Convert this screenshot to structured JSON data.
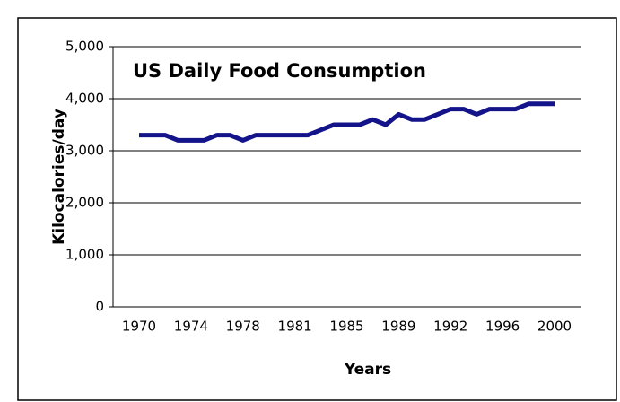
{
  "chart_data": {
    "type": "line",
    "title": "US Daily Food Consumption",
    "x_label": "Years",
    "y_label": "Kilocalories/day",
    "categories": [
      "1970",
      null,
      null,
      null,
      "1974",
      null,
      null,
      null,
      "1978",
      null,
      null,
      null,
      "1981",
      null,
      null,
      null,
      "1985",
      null,
      null,
      null,
      "1989",
      null,
      null,
      null,
      "1992",
      null,
      null,
      null,
      "1996",
      null,
      null,
      null,
      "2000"
    ],
    "series": [
      {
        "name": "Kilocalories/day",
        "color": "#13138a",
        "values": [
          3300,
          3300,
          3300,
          3200,
          3200,
          3200,
          3300,
          3300,
          3200,
          3300,
          3300,
          3300,
          3300,
          3300,
          3400,
          3500,
          3500,
          3500,
          3600,
          3500,
          3700,
          3600,
          3600,
          3700,
          3800,
          3800,
          3700,
          3800,
          3800,
          3800,
          3900,
          3900,
          3900
        ]
      }
    ],
    "ylim": [
      0,
      5000
    ],
    "yticks": [
      0,
      {
        "value": 1000,
        "label": "1,000"
      },
      {
        "value": 2000,
        "label": "2,000"
      },
      {
        "value": 3000,
        "label": "3,000"
      },
      {
        "value": 4000,
        "label": "4,000"
      },
      {
        "value": 5000,
        "label": "5,000"
      }
    ],
    "grid": true
  }
}
